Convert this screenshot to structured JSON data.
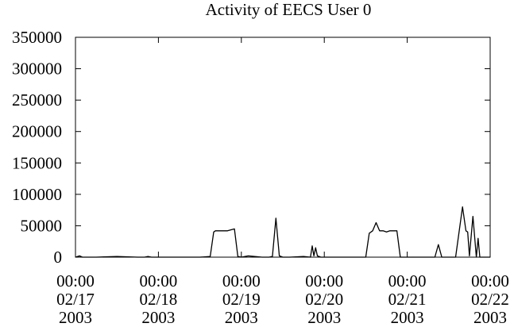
{
  "chart_data": {
    "type": "line",
    "title": "Activity of EECS User 0",
    "xlabel": "",
    "ylabel": "",
    "ylim": [
      0,
      350000
    ],
    "xlim": [
      "2003-02-17 00:00",
      "2003-02-22 00:00"
    ],
    "grid": false,
    "yticks": [
      {
        "value": 0,
        "label": "0"
      },
      {
        "value": 50000,
        "label": "50000"
      },
      {
        "value": 100000,
        "label": "100000"
      },
      {
        "value": 150000,
        "label": "150000"
      },
      {
        "value": 200000,
        "label": "200000"
      },
      {
        "value": 250000,
        "label": "250000"
      },
      {
        "value": 300000,
        "label": "300000"
      },
      {
        "value": 350000,
        "label": "350000"
      }
    ],
    "xticks": [
      {
        "value": "2003-02-17 00:00",
        "time": "00:00",
        "date": "02/17",
        "year": "2003"
      },
      {
        "value": "2003-02-18 00:00",
        "time": "00:00",
        "date": "02/18",
        "year": "2003"
      },
      {
        "value": "2003-02-19 00:00",
        "time": "00:00",
        "date": "02/19",
        "year": "2003"
      },
      {
        "value": "2003-02-20 00:00",
        "time": "00:00",
        "date": "02/20",
        "year": "2003"
      },
      {
        "value": "2003-02-21 00:00",
        "time": "00:00",
        "date": "02/21",
        "year": "2003"
      },
      {
        "value": "2003-02-22 00:00",
        "time": "00:00",
        "date": "02/22",
        "year": "2003"
      }
    ],
    "series": [
      {
        "x": [
          "2003-02-17 00:00",
          "2003-02-17 01:10",
          "2003-02-17 02:00",
          "2003-02-17 06:00",
          "2003-02-17 12:00",
          "2003-02-17 18:00",
          "2003-02-17 20:00",
          "2003-02-17 21:00",
          "2003-02-17 22:00",
          "2003-02-18 02:00",
          "2003-02-18 03:00",
          "2003-02-18 06:00",
          "2003-02-18 12:00",
          "2003-02-18 15:00",
          "2003-02-18 16:00",
          "2003-02-18 16:30",
          "2003-02-18 18:00",
          "2003-02-18 20:00",
          "2003-02-18 22:00",
          "2003-02-18 23:00",
          "2003-02-19 00:00",
          "2003-02-19 02:00",
          "2003-02-19 06:00",
          "2003-02-19 08:00",
          "2003-02-19 09:00",
          "2003-02-19 10:00",
          "2003-02-19 11:00",
          "2003-02-19 12:00",
          "2003-02-19 14:00",
          "2003-02-19 18:00",
          "2003-02-19 20:00",
          "2003-02-19 20:30",
          "2003-02-19 21:00",
          "2003-02-19 21:30",
          "2003-02-19 22:00",
          "2003-02-19 23:00",
          "2003-02-20 00:00",
          "2003-02-20 04:00",
          "2003-02-20 08:00",
          "2003-02-20 12:00",
          "2003-02-20 13:00",
          "2003-02-20 14:00",
          "2003-02-20 15:00",
          "2003-02-20 16:00",
          "2003-02-20 17:00",
          "2003-02-20 18:00",
          "2003-02-20 19:00",
          "2003-02-20 20:00",
          "2003-02-20 21:00",
          "2003-02-20 22:00",
          "2003-02-21 00:00",
          "2003-02-21 04:00",
          "2003-02-21 08:00",
          "2003-02-21 09:00",
          "2003-02-21 10:00",
          "2003-02-21 11:00",
          "2003-02-21 14:00",
          "2003-02-21 16:00",
          "2003-02-21 17:00",
          "2003-02-21 17:30",
          "2003-02-21 18:00",
          "2003-02-21 19:00",
          "2003-02-21 20:00",
          "2003-02-21 20:30",
          "2003-02-21 21:00",
          "2003-02-21 21:30",
          "2003-02-21 22:00",
          "2003-02-21 22:30",
          "2003-02-21 23:00",
          "2003-02-22 00:00"
        ],
        "y": [
          0,
          2000,
          0,
          0,
          1000,
          0,
          0,
          1000,
          0,
          0,
          0,
          0,
          0,
          1000,
          40000,
          42000,
          42000,
          42000,
          45000,
          1000,
          0,
          2000,
          0,
          0,
          1000,
          62000,
          2000,
          0,
          0,
          1000,
          0,
          18000,
          2000,
          15000,
          2000,
          0,
          0,
          0,
          0,
          0,
          38000,
          42000,
          55000,
          42000,
          42000,
          40000,
          42000,
          42000,
          42000,
          0,
          0,
          0,
          0,
          20000,
          0,
          0,
          0,
          80000,
          42000,
          40000,
          2000,
          65000,
          0,
          30000,
          0,
          0,
          0,
          0,
          0,
          0
        ]
      }
    ]
  }
}
